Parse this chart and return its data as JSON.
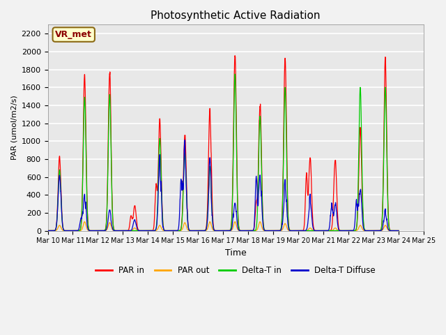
{
  "title": "Photosynthetic Active Radiation",
  "ylabel": "PAR (umol/m2/s)",
  "xlabel": "Time",
  "ylim": [
    0,
    2300
  ],
  "yticks": [
    0,
    200,
    400,
    600,
    800,
    1000,
    1200,
    1400,
    1600,
    1800,
    2000,
    2200
  ],
  "xtick_labels": [
    "Mar 10",
    "Mar 11",
    "Mar 12",
    "Mar 13",
    "Mar 14",
    "Mar 15",
    "Mar 16",
    "Mar 17",
    "Mar 18",
    "Mar 19",
    "Mar 20",
    "Mar 21",
    "Mar 22",
    "Mar 23",
    "Mar 24",
    "Mar 25"
  ],
  "fig_background": "#f2f2f2",
  "plot_background": "#e8e8e8",
  "grid_color": "#ffffff",
  "tag_label": "VR_met",
  "tag_facecolor": "#ffffcc",
  "tag_edgecolor": "#8b6914",
  "tag_textcolor": "#8b0000",
  "series_colors": {
    "PAR_in": "#ff0000",
    "PAR_out": "#ffa500",
    "Delta_T_in": "#00cc00",
    "Delta_T_diffuse": "#0000cc"
  },
  "series_labels": {
    "PAR_in": "PAR in",
    "PAR_out": "PAR out",
    "Delta_T_in": "Delta-T in",
    "Delta_T_diffuse": "Delta-T Diffuse"
  },
  "day_peaks": {
    "PAR_in": [
      830,
      1680,
      1730,
      280,
      1220,
      1080,
      1330,
      2030,
      1460,
      1850,
      800,
      800,
      1180,
      1880
    ],
    "PAR_out": [
      60,
      100,
      90,
      30,
      60,
      90,
      100,
      100,
      100,
      80,
      30,
      30,
      60,
      60
    ],
    "Delta_T_in": [
      680,
      1490,
      1520,
      0,
      1030,
      870,
      720,
      1750,
      1280,
      1600,
      0,
      0,
      1600,
      1600
    ],
    "Delta_T_diffuse": [
      680,
      430,
      220,
      120,
      730,
      850,
      700,
      380,
      670,
      540,
      370,
      320,
      470,
      220
    ]
  },
  "day_secondary_peaks": {
    "PAR_in": [
      0,
      0,
      0,
      160,
      480,
      0,
      0,
      0,
      300,
      0,
      600,
      0,
      0,
      0
    ],
    "PAR_out": [
      0,
      0,
      0,
      0,
      0,
      0,
      0,
      0,
      0,
      0,
      0,
      0,
      0,
      0
    ],
    "Delta_T_in": [
      0,
      0,
      0,
      0,
      0,
      0,
      0,
      0,
      0,
      0,
      0,
      0,
      0,
      0
    ],
    "Delta_T_diffuse": [
      0,
      150,
      0,
      0,
      0,
      600,
      0,
      0,
      500,
      0,
      0,
      300,
      350,
      0
    ]
  }
}
